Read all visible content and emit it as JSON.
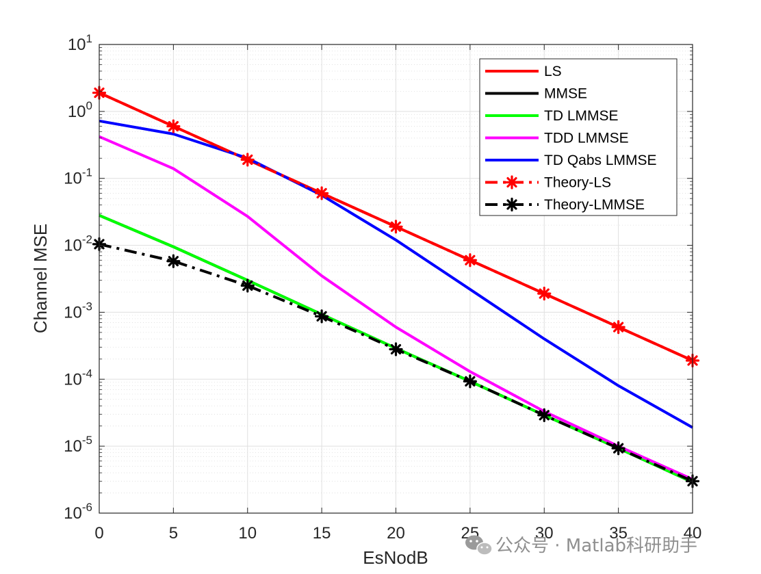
{
  "chart_data": {
    "type": "line",
    "xlabel": "EsNodB",
    "ylabel": "Channel MSE",
    "xlim": [
      0,
      40
    ],
    "ylim": [
      1e-06,
      10
    ],
    "yscale": "log",
    "grid": true,
    "minor_grid": true,
    "legend_location": "top-right",
    "x": [
      0,
      5,
      10,
      15,
      20,
      25,
      30,
      35,
      40
    ],
    "x_ticks": [
      0,
      5,
      10,
      15,
      20,
      25,
      30,
      35,
      40
    ],
    "x_tick_labels": [
      "0",
      "5",
      "10",
      "15",
      "20",
      "25",
      "30",
      "35",
      "40"
    ],
    "y_ticks": [
      {
        "value": 10,
        "base": "10",
        "exp": "1"
      },
      {
        "value": 1,
        "base": "10",
        "exp": "0"
      },
      {
        "value": 0.1,
        "base": "10",
        "exp": "-1"
      },
      {
        "value": 0.01,
        "base": "10",
        "exp": "-2"
      },
      {
        "value": 0.001,
        "base": "10",
        "exp": "-3"
      },
      {
        "value": 0.0001,
        "base": "10",
        "exp": "-4"
      },
      {
        "value": 1e-05,
        "base": "10",
        "exp": "-5"
      },
      {
        "value": 1e-06,
        "base": "10",
        "exp": "-6"
      }
    ],
    "series": [
      {
        "name": "LS",
        "color": "#ff0000",
        "style": "solid",
        "marker": "none",
        "values": [
          1.9,
          0.6,
          0.19,
          0.06,
          0.019,
          0.006,
          0.0019,
          0.0006,
          0.00019
        ]
      },
      {
        "name": "MMSE",
        "color": "#000000",
        "style": "solid",
        "marker": "none",
        "values": [
          0.028,
          0.0095,
          0.003,
          0.00093,
          0.00029,
          9.3e-05,
          2.9e-05,
          9.3e-06,
          2.9e-06
        ]
      },
      {
        "name": "TD LMMSE",
        "color": "#00ff00",
        "style": "solid",
        "marker": "none",
        "values": [
          0.028,
          0.0095,
          0.003,
          0.00093,
          0.00029,
          9.3e-05,
          2.9e-05,
          9.3e-06,
          2.9e-06
        ]
      },
      {
        "name": "TDD LMMSE",
        "color": "#ff00ff",
        "style": "solid",
        "marker": "none",
        "values": [
          0.42,
          0.14,
          0.027,
          0.0035,
          0.0006,
          0.00013,
          3.3e-05,
          1e-05,
          3.2e-06
        ]
      },
      {
        "name": "TD Qabs LMMSE",
        "color": "#0000ff",
        "style": "solid",
        "marker": "none",
        "values": [
          0.72,
          0.46,
          0.2,
          0.056,
          0.012,
          0.0022,
          0.0004,
          8e-05,
          1.9e-05
        ]
      },
      {
        "name": "Theory-LS",
        "color": "#ff0000",
        "style": "dashdot",
        "marker": "star",
        "values": [
          1.9,
          0.6,
          0.19,
          0.06,
          0.019,
          0.006,
          0.0019,
          0.0006,
          0.00019
        ]
      },
      {
        "name": "Theory-LMMSE",
        "color": "#000000",
        "style": "dashdot",
        "marker": "star",
        "values": [
          0.0104,
          0.0058,
          0.0025,
          0.00087,
          0.00028,
          9.3e-05,
          2.9e-05,
          9.3e-06,
          3e-06
        ]
      }
    ]
  },
  "watermark": {
    "text": "公众号 · Matlab科研助手",
    "icon": "wechat-icon"
  }
}
